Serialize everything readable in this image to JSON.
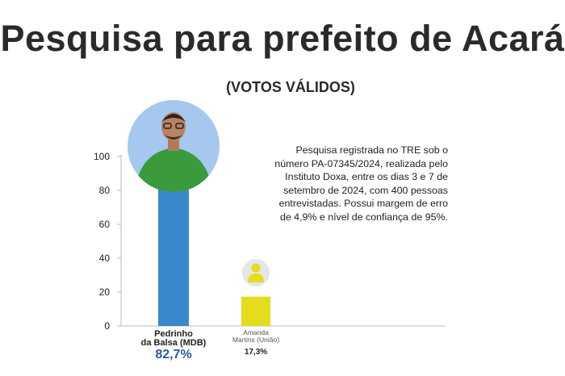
{
  "title": "Pesquisa para prefeito de Acará",
  "subtitle": "(VOTOS VÁLIDOS)",
  "note": "Pesquisa registrada no TRE sob o número PA-07345/2024, realizada pelo Instituto Doxa, entre os dias 3 e 7 de setembro de 2024, com 400 pessoas entrevistadas. Possui margem de erro de 4,9% e nível de confiança de 95%.",
  "colors": {
    "bar1": "#3a88cc",
    "bar2": "#e4dc1c",
    "avatar_bg": "#a6c8ee",
    "shirt": "#3a9a3c",
    "placeholder_bg": "#e6e6e6",
    "placeholder_fg": "#e4dc1c",
    "pct1": "#2a5aa0"
  },
  "chart_data": {
    "type": "bar",
    "title": "Pesquisa para prefeito de Acará",
    "subtitle": "(VOTOS VÁLIDOS)",
    "ylim": [
      0,
      100
    ],
    "yticks": [
      0,
      20,
      40,
      60,
      80,
      100
    ],
    "yticklabels": [
      "0",
      "20",
      "40",
      "60",
      "80",
      "100"
    ],
    "categories": [
      "Pedrinho da Balsa (MDB)",
      "Amanda Martins (União)"
    ],
    "name_lines": [
      [
        "Pedrinho",
        "da Balsa (MDB)"
      ],
      [
        "Amanda",
        "Martins (União)"
      ]
    ],
    "values": [
      82.7,
      17.3
    ],
    "value_labels": [
      "82,7%",
      "17,3%"
    ]
  }
}
